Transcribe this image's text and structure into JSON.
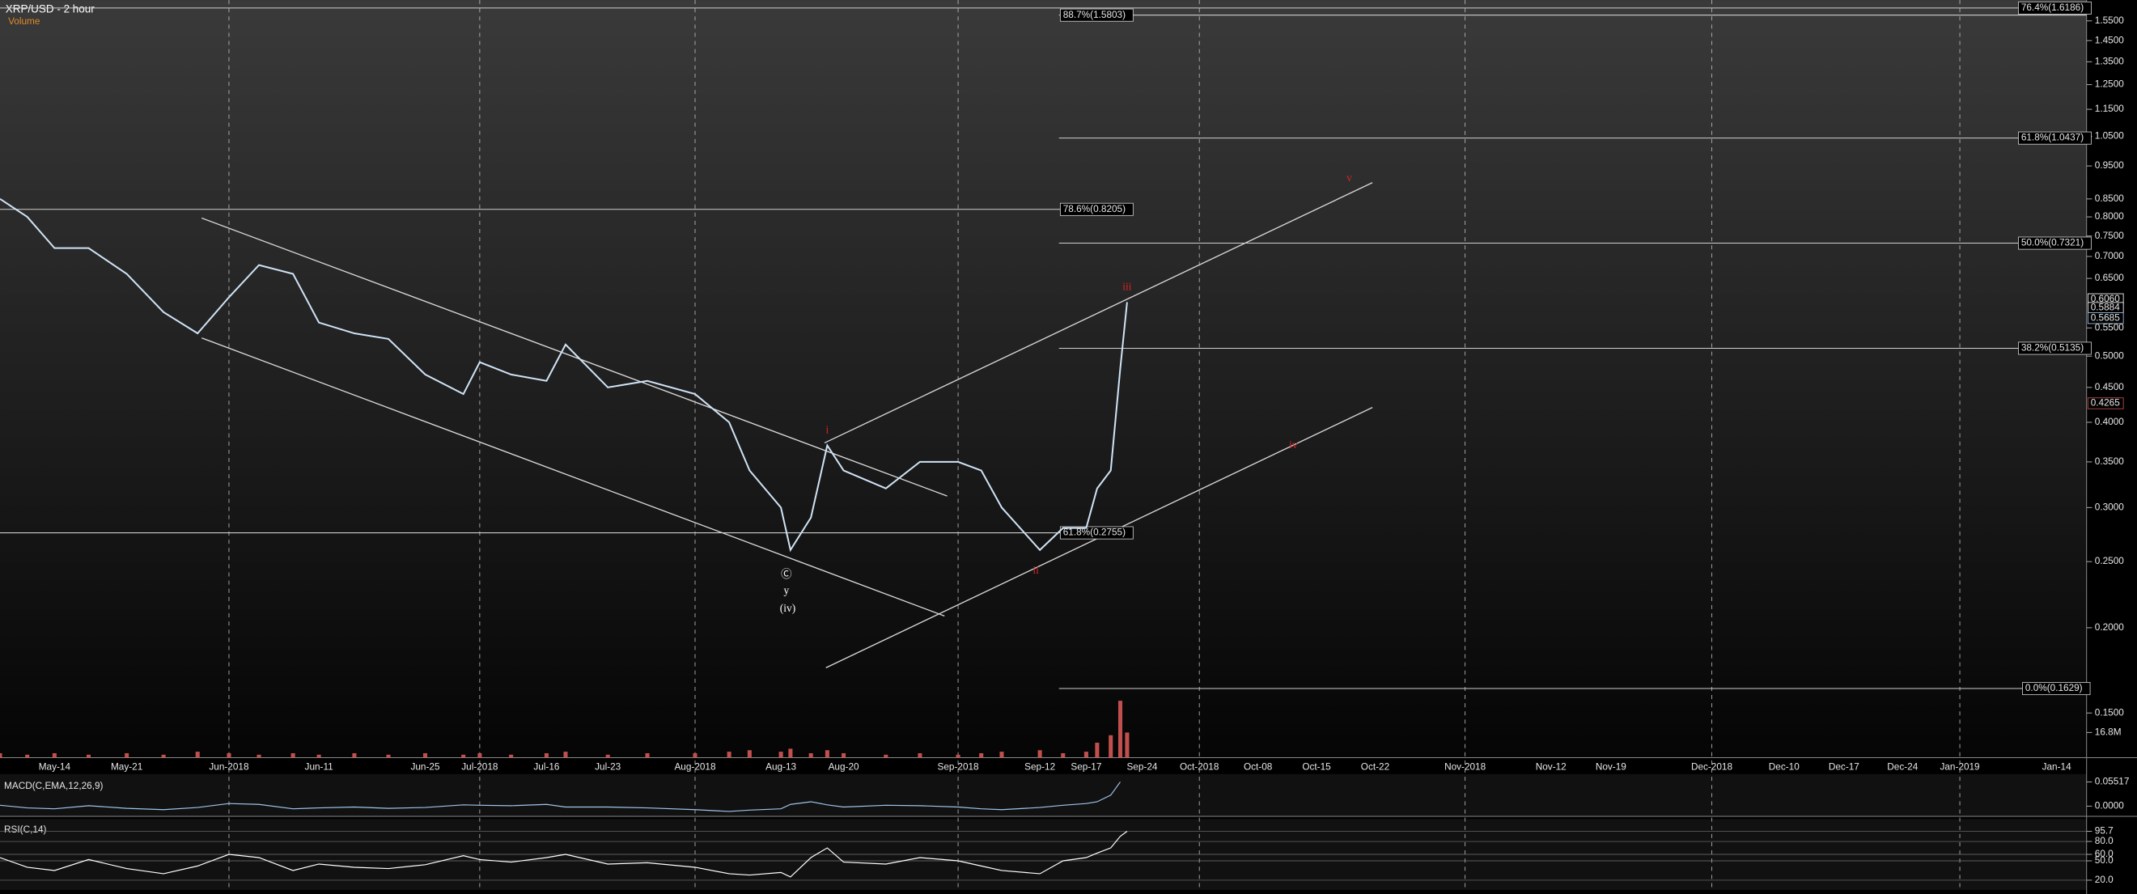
{
  "chart_data": [
    {
      "type": "line",
      "title": "XRP/USD - 2 hour",
      "subtitle": "Volume",
      "log_scale": true,
      "color": "#cfe3f5",
      "categories": [
        null,
        null,
        "May-14",
        null,
        "May-21",
        null,
        null,
        "Jun-2018",
        null,
        null,
        "Jun-11",
        null,
        null,
        "Jun-25",
        null,
        "Jul-2018",
        null,
        "Jul-16",
        null,
        "Jul-23",
        null,
        "Aug-2018",
        null,
        null,
        "Aug-13",
        null,
        null,
        null,
        "Aug-20",
        null,
        null,
        "Sep-2018",
        null,
        null,
        "Sep-12",
        null,
        "Sep-17",
        null,
        null,
        null,
        null,
        "Sep-24",
        "Oct-2018",
        "Oct-08",
        "Oct-15",
        "Oct-22",
        "Nov-2018",
        "Nov-12",
        "Nov-19",
        "Dec-2018",
        "Dec-10",
        "Dec-17",
        "Dec-24",
        "Jan-2019",
        "Jan-14"
      ],
      "values": [
        0.85,
        0.8,
        0.72,
        0.72,
        0.66,
        0.58,
        0.54,
        0.61,
        0.68,
        0.66,
        0.56,
        0.54,
        0.53,
        0.47,
        0.44,
        0.49,
        0.47,
        0.46,
        0.52,
        0.45,
        0.46,
        0.44,
        0.4,
        0.34,
        0.3,
        0.26,
        0.29,
        0.37,
        0.34,
        0.32,
        0.35,
        0.35,
        0.34,
        0.3,
        0.26,
        0.28,
        0.28,
        0.32,
        0.34,
        0.48,
        0.6,
        null,
        null,
        null,
        null,
        null,
        null,
        null,
        null,
        null,
        null,
        null,
        null,
        null,
        null
      ],
      "ylim": [
        0.129,
        1.64
      ],
      "yticks": [
        {
          "value": 0.15,
          "label": "0.1500"
        },
        {
          "value": 0.2,
          "label": "0.2000"
        },
        {
          "value": 0.25,
          "label": "0.2500"
        },
        {
          "value": 0.3,
          "label": "0.3000"
        },
        {
          "value": 0.35,
          "label": "0.3500"
        },
        {
          "value": 0.4,
          "label": "0.4000"
        },
        {
          "value": 0.45,
          "label": "0.4500"
        },
        {
          "value": 0.5,
          "label": "0.5000"
        },
        {
          "value": 0.55,
          "label": "0.5500"
        },
        {
          "value": 0.65,
          "label": "0.6500"
        },
        {
          "value": 0.7,
          "label": "0.7000"
        },
        {
          "value": 0.75,
          "label": "0.7500"
        },
        {
          "value": 0.8,
          "label": "0.8000"
        },
        {
          "value": 0.85,
          "label": "0.8500"
        },
        {
          "value": 0.95,
          "label": "0.9500"
        },
        {
          "value": 1.05,
          "label": "1.0500"
        },
        {
          "value": 1.15,
          "label": "1.1500"
        },
        {
          "value": 1.25,
          "label": "1.2500"
        },
        {
          "value": 1.35,
          "label": "1.3500"
        },
        {
          "value": 1.45,
          "label": "1.4500"
        },
        {
          "value": 1.55,
          "label": "1.5500"
        }
      ],
      "price_labels": [
        {
          "value": 0.606,
          "label": "0.6060"
        },
        {
          "value": 0.5884,
          "label": "0.5884"
        },
        {
          "value": 0.5685,
          "label": "0.5685"
        },
        {
          "value": 0.4265,
          "label": "0.4265"
        }
      ],
      "annotations": [
        {
          "value": 1.5803,
          "label": "88.7%(1.5803)"
        },
        {
          "value": 1.6186,
          "label": "76.4%(1.6186)"
        },
        {
          "value": 1.0437,
          "label": "61.8%(1.0437)"
        },
        {
          "value": 0.8205,
          "label": "78.6%(0.8205)"
        },
        {
          "value": 0.7321,
          "label": "50.0%(0.7321)"
        },
        {
          "value": 0.5135,
          "label": "38.2%(0.5135)"
        },
        {
          "value": 0.2755,
          "label": "61.8%(0.2755)"
        },
        {
          "value": 0.1629,
          "label": "0.0%(0.1629)"
        }
      ],
      "wave_labels": [
        "i",
        "ii",
        "iii",
        "iv",
        "v",
        "Ⓒ",
        "y",
        "(iv)"
      ]
    },
    {
      "type": "bar",
      "color": "#c0504d",
      "values": [
        3,
        2,
        3,
        2,
        3,
        2,
        4,
        3,
        2,
        3,
        2,
        3,
        2,
        3,
        2,
        3,
        2,
        3,
        4,
        2,
        3,
        3,
        4,
        5,
        4,
        6,
        3,
        5,
        3,
        2,
        3,
        2,
        3,
        4,
        5,
        3,
        4,
        10,
        15,
        38,
        16.8,
        null,
        null,
        null,
        null,
        null,
        null,
        null,
        null,
        null,
        null,
        null,
        null,
        null,
        null
      ],
      "ylim": [
        0,
        40
      ],
      "yticks": [
        {
          "value": 16.8,
          "label": "16.8M"
        }
      ]
    },
    {
      "type": "line",
      "title": "MACD(C,EMA,12,26,9)",
      "color": "#9fc5e8",
      "values": [
        0.002,
        -0.004,
        -0.006,
        0.001,
        -0.005,
        -0.008,
        -0.003,
        0.006,
        0.004,
        -0.006,
        -0.004,
        -0.002,
        -0.005,
        -0.003,
        0.003,
        0.002,
        0.001,
        0.004,
        -0.002,
        -0.002,
        -0.004,
        -0.008,
        -0.012,
        -0.009,
        -0.006,
        0.004,
        0.01,
        0.003,
        -0.002,
        0.002,
        0.001,
        -0.002,
        -0.006,
        -0.008,
        -0.003,
        0.002,
        0.006,
        0.01,
        0.025,
        0.05517,
        null,
        null,
        null,
        null,
        null,
        null,
        null,
        null,
        null,
        null,
        null,
        null,
        null,
        null,
        null
      ],
      "ylim": [
        -0.02,
        0.07
      ],
      "yticks": [
        {
          "value": 0.05517,
          "label": "0.05517"
        },
        {
          "value": 0,
          "label": "0.0000"
        }
      ]
    },
    {
      "type": "line",
      "title": "RSI(C,14)",
      "color": "#ffffff",
      "values": [
        55,
        40,
        35,
        52,
        38,
        30,
        42,
        60,
        55,
        35,
        45,
        40,
        38,
        44,
        58,
        52,
        48,
        55,
        60,
        45,
        47,
        40,
        30,
        28,
        32,
        25,
        55,
        70,
        48,
        45,
        55,
        50,
        42,
        35,
        30,
        50,
        55,
        62,
        70,
        88,
        95.7,
        null,
        null,
        null,
        null,
        null,
        null,
        null,
        null,
        null,
        null,
        null,
        null,
        null,
        null
      ],
      "ylim": [
        5,
        100
      ],
      "yticks": [
        {
          "value": 95.7,
          "label": "95.7"
        },
        {
          "value": 80,
          "label": "80.0"
        },
        {
          "value": 60,
          "label": "60.0"
        },
        {
          "value": 50,
          "label": "50.0"
        },
        {
          "value": 20,
          "label": "20.0"
        }
      ]
    }
  ]
}
